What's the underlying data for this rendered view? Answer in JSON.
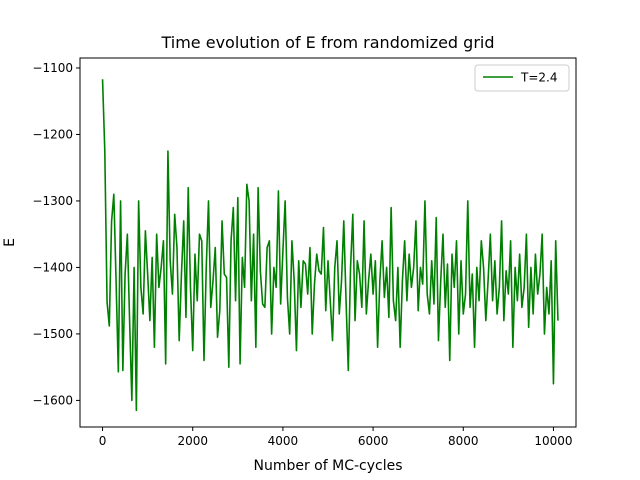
{
  "chart_data": {
    "type": "line",
    "title": "Time evolution of E from randomized grid",
    "xlabel": "Number of MC-cycles",
    "ylabel": "E",
    "xlim": [
      -500,
      10500
    ],
    "ylim": [
      -1640,
      -1085
    ],
    "xticks": [
      0,
      2000,
      4000,
      6000,
      8000,
      10000
    ],
    "xtick_labels": [
      "0",
      "2000",
      "4000",
      "6000",
      "8000",
      "10000"
    ],
    "yticks": [
      -1600,
      -1500,
      -1400,
      -1300,
      -1200,
      -1100
    ],
    "ytick_labels": [
      "−1600",
      "−1500",
      "−1400",
      "−1300",
      "−1200",
      "−1100"
    ],
    "grid": false,
    "legend_position": "top-right",
    "series": [
      {
        "name": "T=2.4",
        "color": "#008000",
        "x_start": 0,
        "x_step": 50,
        "values": [
          -1117,
          -1225,
          -1452,
          -1488,
          -1331,
          -1290,
          -1420,
          -1557,
          -1300,
          -1555,
          -1410,
          -1350,
          -1480,
          -1600,
          -1400,
          -1615,
          -1300,
          -1430,
          -1470,
          -1345,
          -1410,
          -1480,
          -1385,
          -1520,
          -1350,
          -1430,
          -1400,
          -1360,
          -1545,
          -1225,
          -1390,
          -1440,
          -1320,
          -1370,
          -1510,
          -1410,
          -1330,
          -1475,
          -1280,
          -1430,
          -1525,
          -1380,
          -1450,
          -1350,
          -1360,
          -1540,
          -1400,
          -1300,
          -1460,
          -1420,
          -1370,
          -1505,
          -1465,
          -1330,
          -1410,
          -1415,
          -1550,
          -1360,
          -1310,
          -1450,
          -1295,
          -1545,
          -1385,
          -1430,
          -1275,
          -1300,
          -1450,
          -1350,
          -1520,
          -1280,
          -1405,
          -1455,
          -1460,
          -1370,
          -1360,
          -1500,
          -1400,
          -1430,
          -1285,
          -1455,
          -1375,
          -1300,
          -1445,
          -1500,
          -1360,
          -1420,
          -1525,
          -1390,
          -1460,
          -1390,
          -1395,
          -1440,
          -1370,
          -1500,
          -1425,
          -1380,
          -1405,
          -1410,
          -1340,
          -1465,
          -1390,
          -1450,
          -1510,
          -1400,
          -1360,
          -1470,
          -1420,
          -1330,
          -1450,
          -1555,
          -1400,
          -1320,
          -1480,
          -1390,
          -1410,
          -1460,
          -1330,
          -1470,
          -1420,
          -1380,
          -1440,
          -1390,
          -1520,
          -1420,
          -1360,
          -1445,
          -1400,
          -1475,
          -1310,
          -1450,
          -1480,
          -1400,
          -1520,
          -1420,
          -1360,
          -1450,
          -1380,
          -1430,
          -1400,
          -1330,
          -1465,
          -1400,
          -1425,
          -1300,
          -1440,
          -1470,
          -1390,
          -1455,
          -1325,
          -1510,
          -1420,
          -1350,
          -1460,
          -1395,
          -1540,
          -1380,
          -1430,
          -1360,
          -1500,
          -1390,
          -1470,
          -1440,
          -1300,
          -1460,
          -1410,
          -1520,
          -1400,
          -1450,
          -1360,
          -1400,
          -1480,
          -1420,
          -1350,
          -1450,
          -1390,
          -1470,
          -1430,
          -1330,
          -1480,
          -1405,
          -1440,
          -1360,
          -1520,
          -1400,
          -1450,
          -1380,
          -1460,
          -1430,
          -1350,
          -1490,
          -1400,
          -1470,
          -1380,
          -1440,
          -1410,
          -1350,
          -1500,
          -1430,
          -1470,
          -1390,
          -1575,
          -1360,
          -1480
        ]
      }
    ]
  }
}
